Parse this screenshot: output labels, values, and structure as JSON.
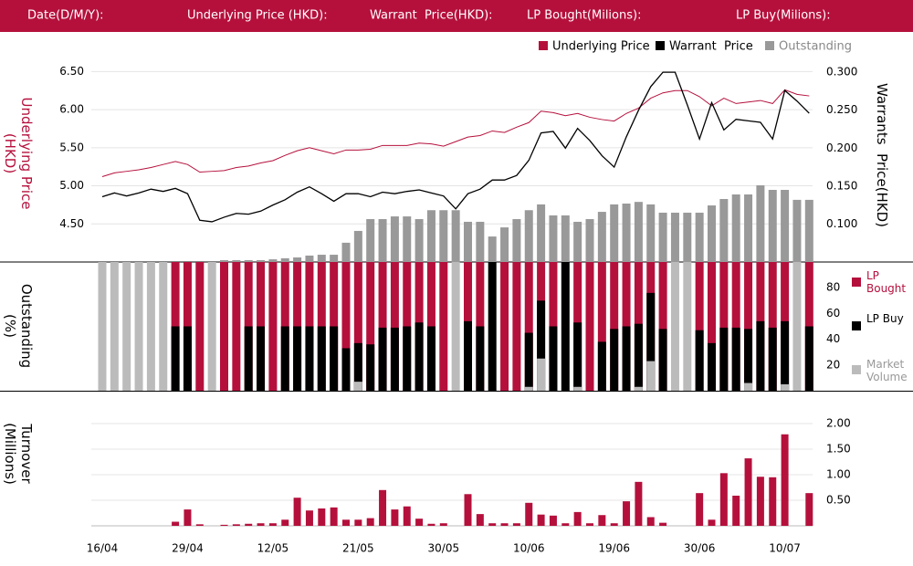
{
  "header": {
    "labels": [
      "Date(D/M/Y):",
      "Underlying Price (HKD):",
      "Warrant  Price(HKD):",
      "LP Bought(Milions):",
      "LP Buy(Milions):"
    ]
  },
  "chart_data": [
    {
      "type": "line",
      "ylabel": "Underlying Price (HKD)",
      "y2label": "Warrants  Price(HKD)",
      "ylim": [
        4.0,
        6.72
      ],
      "yticks": [
        {
          "value": 4.5,
          "label": "4.50"
        },
        {
          "value": 5.0,
          "label": "5.00"
        },
        {
          "value": 5.5,
          "label": "5.50"
        },
        {
          "value": 6.0,
          "label": "6.00"
        },
        {
          "value": 6.5,
          "label": "6.50"
        }
      ],
      "y2lim": [
        0.05,
        0.323
      ],
      "y2ticks": [
        {
          "value": 0.1,
          "label": "0.100"
        },
        {
          "value": 0.15,
          "label": "0.150"
        },
        {
          "value": 0.2,
          "label": "0.200"
        },
        {
          "value": 0.25,
          "label": "0.250"
        },
        {
          "value": 0.3,
          "label": "0.300"
        }
      ],
      "y3lim": [
        0,
        100
      ],
      "grid": true,
      "series": [
        {
          "name": "Underlying Price",
          "color": "#b5103c",
          "axis": "y",
          "values": [
            5.12,
            5.17,
            5.19,
            5.21,
            5.24,
            5.28,
            5.32,
            5.28,
            5.18,
            5.19,
            5.2,
            5.24,
            5.26,
            5.3,
            5.33,
            5.4,
            5.46,
            5.5,
            5.46,
            5.42,
            5.47,
            5.47,
            5.48,
            5.53,
            5.53,
            5.53,
            5.56,
            5.55,
            5.52,
            5.58,
            5.64,
            5.66,
            5.72,
            5.7,
            5.77,
            5.83,
            5.98,
            5.96,
            5.92,
            5.95,
            5.9,
            5.87,
            5.85,
            5.95,
            6.02,
            6.15,
            6.22,
            6.25,
            6.25,
            6.17,
            6.05,
            6.15,
            6.08,
            6.1,
            6.12,
            6.08,
            6.26,
            6.2,
            6.18
          ]
        },
        {
          "name": "Warrant  Price",
          "color": "#000000",
          "axis": "y2",
          "values": [
            0.136,
            0.141,
            0.137,
            0.141,
            0.146,
            0.143,
            0.147,
            0.14,
            0.105,
            0.103,
            0.109,
            0.114,
            0.113,
            0.117,
            0.125,
            0.132,
            0.142,
            0.149,
            0.14,
            0.13,
            0.14,
            0.14,
            0.136,
            0.142,
            0.14,
            0.143,
            0.145,
            0.141,
            0.137,
            0.12,
            0.14,
            0.146,
            0.158,
            0.158,
            0.164,
            0.184,
            0.22,
            0.222,
            0.2,
            0.226,
            0.21,
            0.19,
            0.175,
            0.215,
            0.25,
            0.281,
            0.3,
            0.3,
            0.257,
            0.212,
            0.26,
            0.224,
            0.238,
            0.236,
            0.234,
            0.212,
            0.276,
            0.262,
            0.246
          ]
        },
        {
          "name": "Outstanding",
          "color": "#999999",
          "axis": "y3",
          "type": "bar",
          "values": [
            0,
            0,
            0,
            0,
            0,
            0,
            0,
            0,
            0,
            0,
            0.9,
            0.9,
            0.9,
            0.9,
            1.3,
            1.8,
            2.2,
            3.1,
            3.5,
            3.5,
            9.3,
            15,
            20.7,
            20.7,
            22,
            22,
            20.7,
            25,
            25,
            25,
            19.4,
            19.4,
            12.3,
            16.7,
            20.7,
            25,
            27.8,
            22.5,
            22.5,
            19.4,
            20.7,
            24.2,
            27.8,
            28.2,
            29,
            27.8,
            23.8,
            23.8,
            23.8,
            23.8,
            27.3,
            30.4,
            32.6,
            32.6,
            37,
            34.8,
            34.8,
            30,
            30
          ]
        }
      ]
    },
    {
      "type": "bar",
      "ylabel": "Outstanding (%)",
      "ylim": [
        0,
        100
      ],
      "yticks": [
        20,
        40,
        60,
        80
      ],
      "grid": false,
      "series": [
        {
          "name": "LP Bought",
          "color": "#b5103c",
          "values": [
            0,
            0,
            0,
            0,
            0,
            0,
            100,
            100,
            100,
            0,
            100,
            100,
            100,
            100,
            100,
            100,
            100,
            100,
            100,
            100,
            100,
            100,
            100,
            100,
            100,
            100,
            100,
            100,
            100,
            0,
            100,
            100,
            0,
            100,
            100,
            100,
            100,
            100,
            0,
            100,
            100,
            100,
            100,
            100,
            100,
            100,
            100,
            0,
            0,
            100,
            100,
            100,
            100,
            100,
            100,
            100,
            100,
            0,
            100
          ]
        },
        {
          "name": "LP Buy",
          "color": "#000000",
          "values": [
            0,
            0,
            0,
            0,
            0,
            0,
            50,
            50,
            0,
            0,
            0,
            0,
            50,
            50,
            0,
            50,
            50,
            50,
            50,
            50,
            33,
            37,
            36,
            49,
            49,
            50,
            53,
            50,
            0,
            0,
            54,
            50,
            100,
            0,
            0,
            45,
            70,
            50,
            100,
            53,
            0,
            38,
            48,
            50,
            52,
            76,
            48,
            0,
            0,
            47,
            37,
            49,
            49,
            48,
            54,
            49,
            54,
            0,
            50
          ]
        },
        {
          "name": "Market Volume",
          "color": "#bbbbbb",
          "values": [
            100,
            100,
            100,
            100,
            100,
            100,
            0,
            0,
            0,
            100,
            0,
            0,
            0,
            0,
            0,
            0,
            0,
            0,
            0,
            0,
            0,
            7,
            0,
            0,
            0,
            0,
            0,
            0,
            0,
            100,
            0,
            0,
            0,
            0,
            0,
            3,
            25,
            0,
            0,
            3,
            0,
            0,
            0,
            0,
            3,
            23,
            0,
            100,
            100,
            0,
            0,
            0,
            0,
            6,
            0,
            0,
            5,
            100,
            0
          ]
        }
      ]
    },
    {
      "type": "bar",
      "ylabel": "Turnover (Millions)",
      "color": "#b5103c",
      "ylim": [
        0,
        2.25
      ],
      "yticks": [
        {
          "value": 0.5,
          "label": "0.50"
        },
        {
          "value": 1.0,
          "label": "1.00"
        },
        {
          "value": 1.5,
          "label": "1.50"
        },
        {
          "value": 2.0,
          "label": "2.00"
        }
      ],
      "grid": true,
      "categories": [
        "16/04",
        null,
        null,
        null,
        null,
        null,
        null,
        "29/04",
        null,
        null,
        null,
        null,
        null,
        null,
        "12/05",
        null,
        null,
        null,
        null,
        null,
        null,
        "21/05",
        null,
        null,
        null,
        null,
        null,
        null,
        "30/05",
        null,
        null,
        null,
        null,
        null,
        null,
        "10/06",
        null,
        null,
        null,
        null,
        null,
        null,
        "19/06",
        null,
        null,
        null,
        null,
        null,
        null,
        "30/06",
        null,
        null,
        null,
        null,
        null,
        null,
        "10/07",
        null,
        null
      ],
      "values": [
        0,
        0,
        0,
        0,
        0,
        0,
        0.08,
        0.32,
        0.03,
        0,
        0.02,
        0.03,
        0.04,
        0.05,
        0.05,
        0.12,
        0.55,
        0.3,
        0.34,
        0.36,
        0.12,
        0.12,
        0.15,
        0.7,
        0.32,
        0.38,
        0.14,
        0.04,
        0.05,
        0,
        0.62,
        0.23,
        0.05,
        0.05,
        0.05,
        0.45,
        0.22,
        0.2,
        0.05,
        0.27,
        0.05,
        0.21,
        0.05,
        0.48,
        0.86,
        0.17,
        0.06,
        0,
        0,
        0.64,
        0.12,
        1.03,
        0.59,
        1.32,
        0.96,
        0.95,
        1.79,
        0,
        0.64
      ]
    }
  ]
}
